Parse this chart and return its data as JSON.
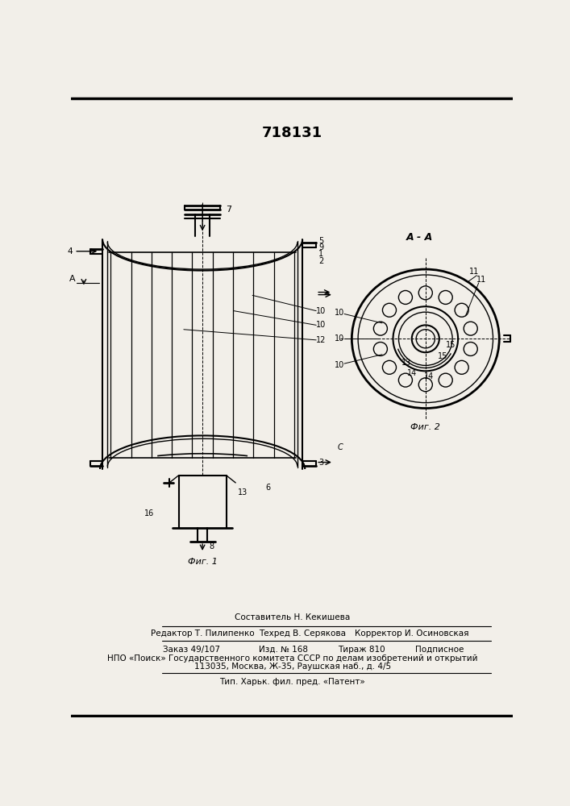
{
  "title": "718131",
  "bg_color": "#f2efe9",
  "fig1_label": "Фиг. 1",
  "fig2_label": "Фиг. 2",
  "aa_label": "A - A",
  "footer_lines": [
    "Составитель Н. Кекишева",
    "Редактор Т. Пилипенко",
    "Техред В. Серякова",
    "Корректор И. Осиновская",
    "Заказ 49/107",
    "Изд. № 168",
    "Тираж 810",
    "Подписное",
    "НПО «Поиск» Государственного комитета СССР по делам изобретений и открытий",
    "113035, Москва, Ж-35, Раушская наб., д. 4/5",
    "Тип. Харьк. фил. пред. «Патент»"
  ]
}
